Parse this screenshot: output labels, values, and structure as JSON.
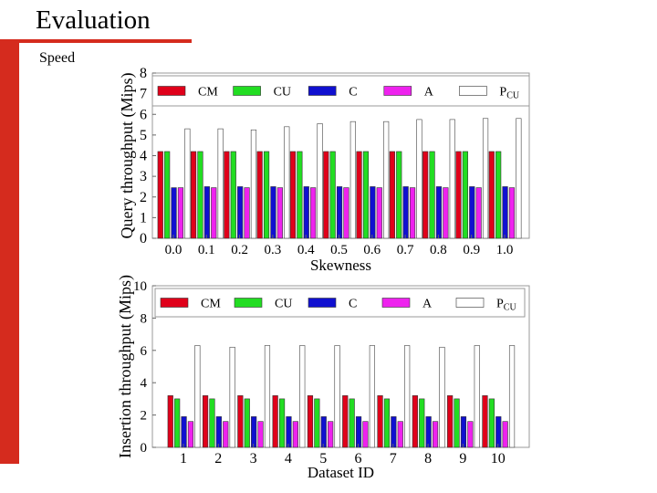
{
  "slide": {
    "title": "Evaluation",
    "subtitle": "Speed"
  },
  "colors": {
    "accent": "#d52b1e"
  },
  "chart_data": [
    {
      "type": "bar",
      "title": "",
      "xlabel": "Skewness",
      "ylabel": "Query throughput (Mips)",
      "ylim": [
        0,
        8
      ],
      "yticks": [
        "0",
        "1",
        "2",
        "3",
        "4",
        "5",
        "6",
        "7",
        "8"
      ],
      "categories": [
        "0.0",
        "0.1",
        "0.2",
        "0.3",
        "0.4",
        "0.5",
        "0.6",
        "0.7",
        "0.8",
        "0.9",
        "1.0"
      ],
      "legend_position": "top",
      "series": [
        {
          "name": "CM",
          "sub": "",
          "color": "#e0001a",
          "values": [
            4.2,
            4.2,
            4.2,
            4.2,
            4.2,
            4.2,
            4.2,
            4.2,
            4.2,
            4.2,
            4.2
          ]
        },
        {
          "name": "CU",
          "sub": "",
          "color": "#22dd22",
          "values": [
            4.2,
            4.2,
            4.2,
            4.2,
            4.2,
            4.2,
            4.2,
            4.2,
            4.2,
            4.2,
            4.2
          ]
        },
        {
          "name": "C",
          "sub": "",
          "color": "#1010d0",
          "values": [
            2.45,
            2.5,
            2.5,
            2.5,
            2.5,
            2.5,
            2.5,
            2.5,
            2.5,
            2.5,
            2.5
          ]
        },
        {
          "name": "A",
          "sub": "",
          "color": "#ee22ee",
          "values": [
            2.45,
            2.45,
            2.45,
            2.45,
            2.45,
            2.45,
            2.45,
            2.45,
            2.45,
            2.45,
            2.45
          ]
        },
        {
          "name": "P",
          "sub": "CU",
          "color": "#ffffff",
          "values": [
            5.3,
            5.3,
            5.25,
            5.4,
            5.55,
            5.65,
            5.65,
            5.75,
            5.75,
            5.8,
            5.8
          ]
        }
      ]
    },
    {
      "type": "bar",
      "title": "",
      "xlabel": "Dataset ID",
      "ylabel": "Insertion throughput (Mips)",
      "ylim": [
        0,
        10
      ],
      "yticks": [
        "0",
        "2",
        "4",
        "6",
        "8",
        "10"
      ],
      "categories": [
        "1",
        "2",
        "3",
        "4",
        "5",
        "6",
        "7",
        "8",
        "9",
        "10"
      ],
      "legend_position": "top",
      "series": [
        {
          "name": "CM",
          "sub": "",
          "color": "#e0001a",
          "values": [
            3.2,
            3.2,
            3.2,
            3.2,
            3.2,
            3.2,
            3.2,
            3.2,
            3.2,
            3.2
          ]
        },
        {
          "name": "CU",
          "sub": "",
          "color": "#22dd22",
          "values": [
            3.0,
            3.0,
            3.0,
            3.0,
            3.0,
            3.0,
            3.0,
            3.0,
            3.0,
            3.0
          ]
        },
        {
          "name": "C",
          "sub": "",
          "color": "#1010d0",
          "values": [
            1.9,
            1.9,
            1.9,
            1.9,
            1.9,
            1.9,
            1.9,
            1.9,
            1.9,
            1.9
          ]
        },
        {
          "name": "A",
          "sub": "",
          "color": "#ee22ee",
          "values": [
            1.6,
            1.6,
            1.6,
            1.6,
            1.6,
            1.6,
            1.6,
            1.6,
            1.6,
            1.6
          ]
        },
        {
          "name": "P",
          "sub": "CU",
          "color": "#ffffff",
          "values": [
            6.3,
            6.2,
            6.3,
            6.3,
            6.3,
            6.3,
            6.3,
            6.2,
            6.3,
            6.3
          ]
        }
      ]
    }
  ]
}
